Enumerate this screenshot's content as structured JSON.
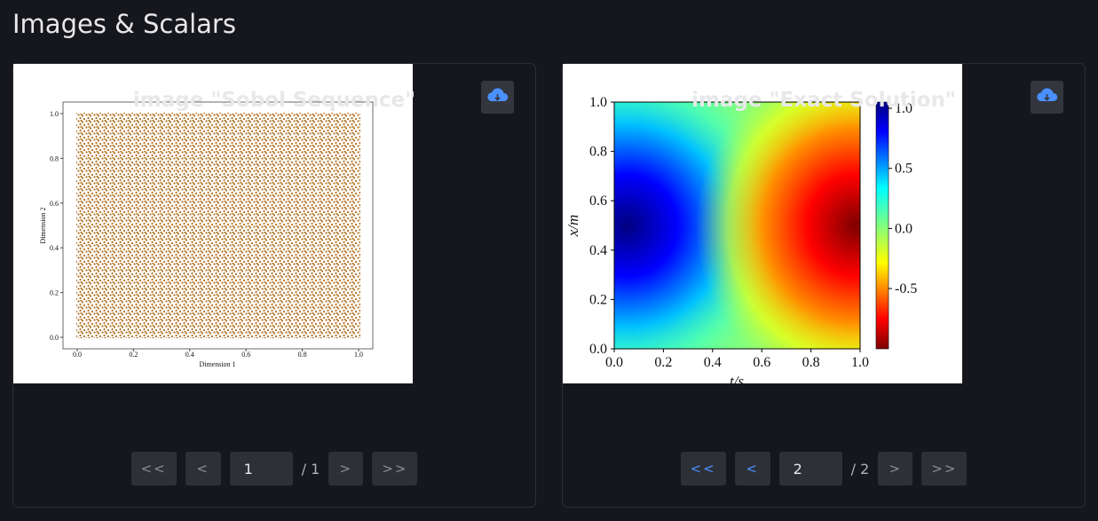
{
  "header": {
    "title": "Images & Scalars"
  },
  "panels": [
    {
      "title": "image \"Sobol Sequence\"",
      "plot": {
        "xlabel": "Dimension 1",
        "ylabel": "Dimension 2",
        "xticks": [
          "0.0",
          "0.2",
          "0.4",
          "0.6",
          "0.8",
          "1.0"
        ],
        "yticks": [
          "0.0",
          "0.2",
          "0.4",
          "0.6",
          "0.8",
          "1.0"
        ]
      },
      "pager": {
        "first": "<<",
        "prev": "<",
        "page": "1",
        "total": "/ 1",
        "next": ">",
        "last": ">>"
      }
    },
    {
      "title": "image \"Exact Solution\"",
      "plot": {
        "xlabel": "t/s",
        "ylabel": "x/m",
        "xticks": [
          "0.0",
          "0.2",
          "0.4",
          "0.6",
          "0.8",
          "1.0"
        ],
        "yticks": [
          "0.0",
          "0.2",
          "0.4",
          "0.6",
          "0.8",
          "1.0"
        ],
        "cbar_ticks": [
          "1.0",
          "0.5",
          "0.0",
          "-0.5"
        ]
      },
      "pager": {
        "first": "<<",
        "prev": "<",
        "page": "2",
        "total": "/ 2",
        "next": ">",
        "last": ">>"
      }
    }
  ]
}
